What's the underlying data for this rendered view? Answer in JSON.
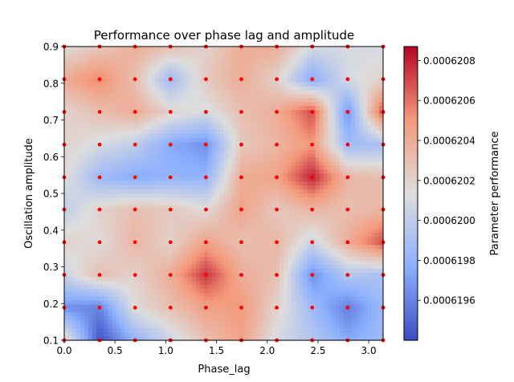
{
  "chart_data": {
    "type": "heatmap",
    "title": "Performance over phase lag and amplitude",
    "xlabel": "Phase_lag",
    "ylabel": "Oscillation amplitude",
    "colorbar_label": "Parameter performance",
    "colormap": "coolwarm",
    "xlim": [
      0,
      3.14159
    ],
    "ylim": [
      0.1,
      0.9
    ],
    "xticks": [
      "0.0",
      "0.5",
      "1.0",
      "1.5",
      "2.0",
      "2.5",
      "3.0"
    ],
    "yticks": [
      "0.1",
      "0.2",
      "0.3",
      "0.4",
      "0.5",
      "0.6",
      "0.7",
      "0.8",
      "0.9"
    ],
    "colorbar_range": [
      0.0006194,
      0.00062087
    ],
    "colorbar_ticks": [
      "0.0006196",
      "0.0006198",
      "0.0006200",
      "0.0006202",
      "0.0006204",
      "0.0006206",
      "0.0006208"
    ],
    "sample_point_color": "#ff0000",
    "x": [
      0.0,
      0.349,
      0.698,
      1.047,
      1.396,
      1.745,
      2.094,
      2.443,
      2.793,
      3.142
    ],
    "y": [
      0.1,
      0.189,
      0.278,
      0.367,
      0.456,
      0.544,
      0.633,
      0.722,
      0.811,
      0.9
    ],
    "values": [
      [
        0.62025,
        0.61942,
        0.6198,
        0.62005,
        0.6203,
        0.62045,
        0.6201,
        0.61995,
        0.61975,
        0.61985
      ],
      [
        0.61965,
        0.6196,
        0.62015,
        0.6203,
        0.62045,
        0.6205,
        0.6202,
        0.61985,
        0.61958,
        0.61985
      ],
      [
        0.62005,
        0.6203,
        0.6202,
        0.6204,
        0.62075,
        0.6204,
        0.6203,
        0.61965,
        0.61995,
        0.6199
      ],
      [
        0.6202,
        0.62015,
        0.62035,
        0.6202,
        0.62045,
        0.6203,
        0.62035,
        0.62005,
        0.6204,
        0.6207
      ],
      [
        0.62,
        0.6202,
        0.6203,
        0.62025,
        0.62015,
        0.62045,
        0.62025,
        0.62035,
        0.6203,
        0.62035
      ],
      [
        0.62015,
        0.61985,
        0.61975,
        0.6198,
        0.6198,
        0.6204,
        0.62045,
        0.6208,
        0.62035,
        0.6203
      ],
      [
        0.6202,
        0.6201,
        0.62,
        0.61975,
        0.61965,
        0.62025,
        0.62035,
        0.6205,
        0.61985,
        0.6199
      ],
      [
        0.6202,
        0.6203,
        0.6204,
        0.6202,
        0.6201,
        0.6203,
        0.6204,
        0.6207,
        0.61965,
        0.6207
      ],
      [
        0.6204,
        0.62055,
        0.6203,
        0.61985,
        0.62025,
        0.6204,
        0.6202,
        0.61975,
        0.6201,
        0.6202
      ],
      [
        0.62015,
        0.62025,
        0.6204,
        0.6203,
        0.6202,
        0.6204,
        0.6204,
        0.6201,
        0.6201,
        0.6201
      ]
    ]
  }
}
